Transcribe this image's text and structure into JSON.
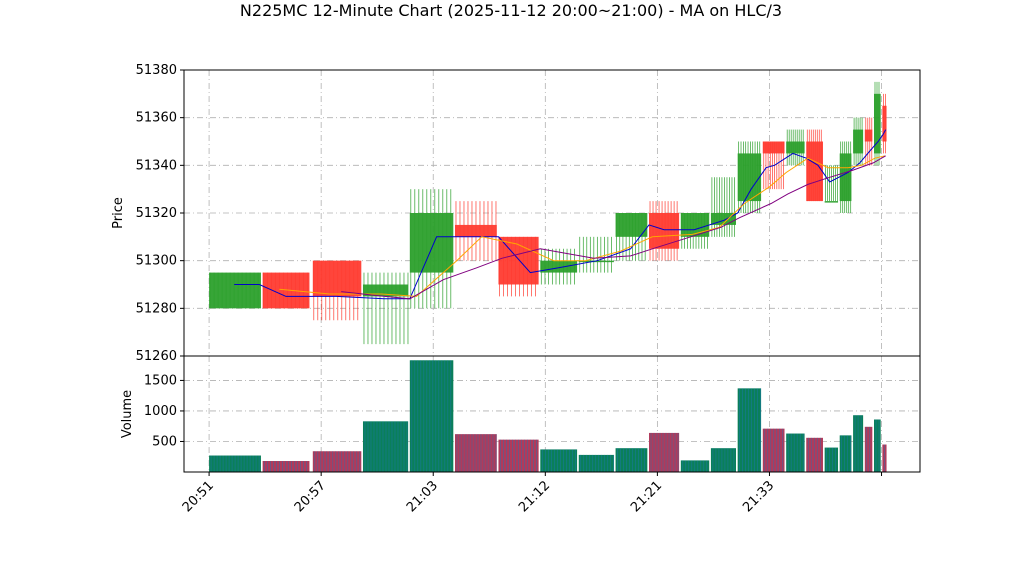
{
  "chart_data": {
    "type": "candlestick",
    "title": "N225MC 12-Minute Chart (2025-11-12 20:00~21:00) - MA on HLC/3",
    "ylabel_price": "Price",
    "ylabel_volume": "Volume",
    "price_ylim": [
      51260,
      51380
    ],
    "price_yticks": [
      51260,
      51280,
      51300,
      51320,
      51340,
      51360,
      51380
    ],
    "volume_ylim": [
      0,
      1900
    ],
    "volume_yticks": [
      500,
      1000,
      1500
    ],
    "xlim": [
      -1.5,
      42.5
    ],
    "xticks": [
      {
        "pos": 0,
        "label": "20:51"
      },
      {
        "pos": 6.7,
        "label": "20:57"
      },
      {
        "pos": 13.4,
        "label": "21:03"
      },
      {
        "pos": 20.1,
        "label": "21:12"
      },
      {
        "pos": 26.8,
        "label": "21:21"
      },
      {
        "pos": 33.5,
        "label": "21:33"
      },
      {
        "pos": 40.2,
        "label": ""
      }
    ],
    "grid": true,
    "colors": {
      "up": "#2ca02c",
      "down": "#ff3b30",
      "volume_up": "#0a7f5a",
      "volume_down": "#b03a5b",
      "ma_short": "#0000cc",
      "ma_mid": "#ffa500",
      "ma_long": "#800080"
    },
    "candles": [
      {
        "x": 0,
        "w": 3.1,
        "open": 51280,
        "high": 51295,
        "low": 51280,
        "close": 51295,
        "volume": 270
      },
      {
        "x": 3.2,
        "w": 2.8,
        "open": 51295,
        "high": 51295,
        "low": 51280,
        "close": 51280,
        "volume": 180
      },
      {
        "x": 6.2,
        "w": 2.9,
        "open": 51300,
        "high": 51300,
        "low": 51275,
        "close": 51285,
        "volume": 340
      },
      {
        "x": 9.2,
        "w": 2.7,
        "open": 51285,
        "high": 51295,
        "low": 51265,
        "close": 51290,
        "volume": 830
      },
      {
        "x": 12.0,
        "w": 2.6,
        "open": 51295,
        "high": 51330,
        "low": 51280,
        "close": 51320,
        "volume": 1830
      },
      {
        "x": 14.7,
        "w": 2.5,
        "open": 51315,
        "high": 51325,
        "low": 51300,
        "close": 51310,
        "volume": 620
      },
      {
        "x": 17.3,
        "w": 2.4,
        "open": 51310,
        "high": 51310,
        "low": 51285,
        "close": 51290,
        "volume": 530
      },
      {
        "x": 19.8,
        "w": 2.2,
        "open": 51295,
        "high": 51305,
        "low": 51290,
        "close": 51300,
        "volume": 370
      },
      {
        "x": 22.1,
        "w": 2.1,
        "open": 51300,
        "high": 51310,
        "low": 51295,
        "close": 51300,
        "volume": 280
      },
      {
        "x": 24.3,
        "w": 1.9,
        "open": 51310,
        "high": 51320,
        "low": 51300,
        "close": 51320,
        "volume": 390
      },
      {
        "x": 26.3,
        "w": 1.8,
        "open": 51320,
        "high": 51325,
        "low": 51300,
        "close": 51305,
        "volume": 640
      },
      {
        "x": 28.2,
        "w": 1.7,
        "open": 51310,
        "high": 51320,
        "low": 51305,
        "close": 51320,
        "volume": 190
      },
      {
        "x": 30.0,
        "w": 1.5,
        "open": 51315,
        "high": 51335,
        "low": 51310,
        "close": 51320,
        "volume": 390
      },
      {
        "x": 31.6,
        "w": 1.4,
        "open": 51325,
        "high": 51350,
        "low": 51320,
        "close": 51345,
        "volume": 1370
      },
      {
        "x": 33.1,
        "w": 1.3,
        "open": 51350,
        "high": 51350,
        "low": 51330,
        "close": 51345,
        "volume": 710
      },
      {
        "x": 34.5,
        "w": 1.1,
        "open": 51345,
        "high": 51355,
        "low": 51340,
        "close": 51350,
        "volume": 630
      },
      {
        "x": 35.7,
        "w": 1.0,
        "open": 51350,
        "high": 51355,
        "low": 51325,
        "close": 51325,
        "volume": 560
      },
      {
        "x": 36.8,
        "w": 0.8,
        "open": 51325,
        "high": 51340,
        "low": 51325,
        "close": 51325,
        "volume": 400
      },
      {
        "x": 37.7,
        "w": 0.7,
        "open": 51325,
        "high": 51350,
        "low": 51320,
        "close": 51345,
        "volume": 600
      },
      {
        "x": 38.5,
        "w": 0.6,
        "open": 51345,
        "high": 51360,
        "low": 51340,
        "close": 51355,
        "volume": 930
      },
      {
        "x": 39.2,
        "w": 0.45,
        "open": 51355,
        "high": 51360,
        "low": 51340,
        "close": 51350,
        "volume": 740
      },
      {
        "x": 39.75,
        "w": 0.4,
        "open": 51345,
        "high": 51375,
        "low": 51340,
        "close": 51370,
        "volume": 860
      },
      {
        "x": 40.25,
        "w": 0.25,
        "open": 51365,
        "high": 51370,
        "low": 51345,
        "close": 51350,
        "volume": 450
      }
    ],
    "ma_series": [
      {
        "color_key": "ma_short",
        "points": [
          [
            1.5,
            51290
          ],
          [
            3.0,
            51290
          ],
          [
            4.6,
            51285
          ],
          [
            7.6,
            51285
          ],
          [
            10.5,
            51284
          ],
          [
            12.0,
            51284
          ],
          [
            13.6,
            51310
          ],
          [
            16.0,
            51310
          ],
          [
            17.3,
            51310
          ],
          [
            19.2,
            51295
          ],
          [
            20.9,
            51297
          ],
          [
            23.2,
            51300
          ],
          [
            25.2,
            51305
          ],
          [
            26.3,
            51315
          ],
          [
            27.2,
            51313
          ],
          [
            29.0,
            51313
          ],
          [
            30.8,
            51317
          ],
          [
            31.6,
            51320
          ],
          [
            32.4,
            51330
          ],
          [
            33.3,
            51339
          ],
          [
            33.8,
            51340
          ],
          [
            34.9,
            51345
          ],
          [
            35.7,
            51343
          ],
          [
            36.4,
            51340
          ],
          [
            37.1,
            51333
          ],
          [
            38.2,
            51337
          ],
          [
            38.9,
            51341
          ],
          [
            39.5,
            51346
          ],
          [
            40.0,
            51350
          ],
          [
            40.3,
            51353
          ],
          [
            40.45,
            51355
          ]
        ]
      },
      {
        "color_key": "ma_mid",
        "points": [
          [
            4.2,
            51288
          ],
          [
            7.2,
            51286
          ],
          [
            10.3,
            51286
          ],
          [
            12.4,
            51285
          ],
          [
            14.8,
            51300
          ],
          [
            16.3,
            51310
          ],
          [
            18.4,
            51307
          ],
          [
            20.6,
            51300
          ],
          [
            22.5,
            51300
          ],
          [
            24.6,
            51304
          ],
          [
            26.5,
            51310
          ],
          [
            28.9,
            51311
          ],
          [
            30.5,
            51314
          ],
          [
            32.0,
            51324
          ],
          [
            33.5,
            51331
          ],
          [
            34.5,
            51337
          ],
          [
            35.8,
            51343
          ],
          [
            37.0,
            51339
          ],
          [
            38.2,
            51339
          ],
          [
            39.0,
            51340
          ],
          [
            39.8,
            51343
          ],
          [
            40.4,
            51344
          ]
        ]
      },
      {
        "color_key": "ma_long",
        "points": [
          [
            7.9,
            51287
          ],
          [
            10.5,
            51285
          ],
          [
            12.0,
            51284
          ],
          [
            14.0,
            51292
          ],
          [
            16.0,
            51297
          ],
          [
            17.5,
            51301
          ],
          [
            19.8,
            51305
          ],
          [
            23.0,
            51301
          ],
          [
            25.2,
            51302
          ],
          [
            26.5,
            51305
          ],
          [
            28.8,
            51310
          ],
          [
            30.6,
            51314
          ],
          [
            31.7,
            51318
          ],
          [
            33.6,
            51324
          ],
          [
            34.6,
            51328
          ],
          [
            35.8,
            51332
          ],
          [
            37.1,
            51335
          ],
          [
            38.5,
            51338
          ],
          [
            39.7,
            51341
          ],
          [
            40.45,
            51344
          ]
        ]
      }
    ]
  }
}
